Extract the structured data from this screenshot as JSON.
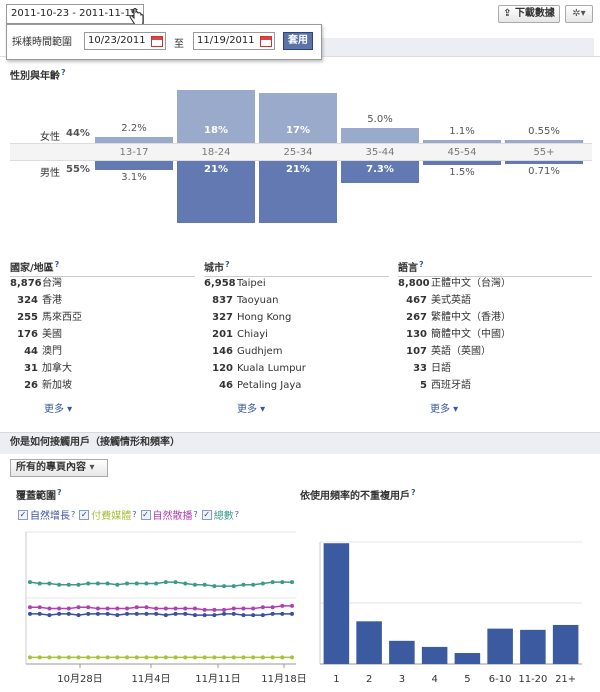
{
  "header": {
    "date_range": "2011-10-23 - 2011-11-19",
    "download_label": "下載數據",
    "gear_label": "▾"
  },
  "date_panel": {
    "label": "採樣時間範圍",
    "start": "10/23/2011",
    "to": "至",
    "end": "11/19/2011",
    "apply": "套用"
  },
  "demographics": {
    "title": "性別與年齡",
    "female_label": "女性",
    "female_pct": "44%",
    "male_label": "男性",
    "male_pct": "55%",
    "ages": [
      "13-17",
      "18-24",
      "25-34",
      "35-44",
      "45-54",
      "55+"
    ],
    "female_values": [
      "2.2%",
      "18%",
      "17%",
      "5.0%",
      "1.1%",
      "0.55%"
    ],
    "male_values": [
      "3.1%",
      "21%",
      "21%",
      "7.3%",
      "1.5%",
      "0.71%"
    ],
    "female_numbers": [
      2.2,
      18,
      17,
      5.0,
      1.1,
      0.55
    ],
    "male_numbers": [
      3.1,
      21,
      21,
      7.3,
      1.5,
      0.71
    ]
  },
  "countries": {
    "title": "國家/地區",
    "items": [
      {
        "count": "8,876",
        "name": "台灣"
      },
      {
        "count": "324",
        "name": "香港"
      },
      {
        "count": "255",
        "name": "馬來西亞"
      },
      {
        "count": "176",
        "name": "美國"
      },
      {
        "count": "44",
        "name": "澳門"
      },
      {
        "count": "31",
        "name": "加拿大"
      },
      {
        "count": "26",
        "name": "新加坡"
      }
    ],
    "more": "更多 ▾"
  },
  "cities": {
    "title": "城市",
    "items": [
      {
        "count": "6,958",
        "name": "Taipei"
      },
      {
        "count": "837",
        "name": "Taoyuan"
      },
      {
        "count": "327",
        "name": "Hong Kong"
      },
      {
        "count": "201",
        "name": "Chiayi"
      },
      {
        "count": "146",
        "name": "Gudhjem"
      },
      {
        "count": "120",
        "name": "Kuala Lumpur"
      },
      {
        "count": "46",
        "name": "Petaling Jaya"
      }
    ],
    "more": "更多 ▾"
  },
  "languages": {
    "title": "語言",
    "items": [
      {
        "count": "8,800",
        "name": "正體中文（台灣）"
      },
      {
        "count": "467",
        "name": "美式英語"
      },
      {
        "count": "267",
        "name": "繁體中文（香港）"
      },
      {
        "count": "130",
        "name": "簡體中文（中國）"
      },
      {
        "count": "107",
        "name": "英語（英國）"
      },
      {
        "count": "33",
        "name": "日語"
      },
      {
        "count": "5",
        "name": "西班牙語"
      }
    ],
    "more": "更多 ▾"
  },
  "reach": {
    "header": "你是如何接觸用戶（接觸情形和頻率）",
    "filter": "所有的專頁內容",
    "coverage_title": "覆蓋範圍",
    "frequency_title": "依使用頻率的不重複用戶",
    "legend": [
      {
        "label": "自然增長",
        "color": "#3b4fa0"
      },
      {
        "label": "付費媒體",
        "color": "#a8c23a"
      },
      {
        "label": "自然散播",
        "color": "#b040b0"
      },
      {
        "label": "總數",
        "color": "#3b9a8a"
      }
    ]
  },
  "chart_data": [
    {
      "type": "line",
      "x_ticks": [
        "10月28日",
        "11月4日",
        "11月11日",
        "11月18日"
      ],
      "series": [
        {
          "name": "自然增長",
          "color": "#3b4fa0",
          "values": [
            0.38,
            0.38,
            0.37,
            0.38,
            0.38,
            0.37,
            0.38,
            0.38,
            0.38,
            0.37,
            0.38,
            0.38,
            0.38,
            0.38,
            0.37,
            0.38,
            0.38,
            0.37,
            0.37,
            0.37,
            0.38,
            0.38,
            0.37,
            0.37,
            0.37,
            0.38,
            0.38,
            0.38
          ]
        },
        {
          "name": "付費媒體",
          "color": "#a8c23a",
          "values": [
            0.05,
            0.05,
            0.05,
            0.05,
            0.05,
            0.05,
            0.05,
            0.05,
            0.05,
            0.05,
            0.05,
            0.05,
            0.05,
            0.05,
            0.05,
            0.05,
            0.05,
            0.05,
            0.05,
            0.05,
            0.05,
            0.05,
            0.05,
            0.05,
            0.05,
            0.05,
            0.05,
            0.05
          ]
        },
        {
          "name": "自然散播",
          "color": "#b040b0",
          "values": [
            0.43,
            0.43,
            0.42,
            0.42,
            0.42,
            0.43,
            0.43,
            0.42,
            0.42,
            0.42,
            0.42,
            0.43,
            0.43,
            0.42,
            0.42,
            0.42,
            0.42,
            0.42,
            0.41,
            0.41,
            0.41,
            0.42,
            0.42,
            0.42,
            0.43,
            0.43,
            0.44,
            0.44
          ]
        },
        {
          "name": "總數",
          "color": "#3b9a8a",
          "values": [
            0.62,
            0.61,
            0.61,
            0.6,
            0.6,
            0.6,
            0.61,
            0.61,
            0.61,
            0.6,
            0.61,
            0.61,
            0.61,
            0.61,
            0.62,
            0.62,
            0.61,
            0.6,
            0.6,
            0.59,
            0.59,
            0.59,
            0.6,
            0.6,
            0.61,
            0.62,
            0.62,
            0.62
          ]
        }
      ]
    },
    {
      "type": "bar",
      "categories": [
        "1",
        "2",
        "3",
        "4",
        "5",
        "6-10",
        "11-20",
        "21+"
      ],
      "values": [
        0.99,
        0.35,
        0.19,
        0.14,
        0.09,
        0.29,
        0.28,
        0.32
      ],
      "ylim": [
        0,
        1.0
      ]
    }
  ]
}
